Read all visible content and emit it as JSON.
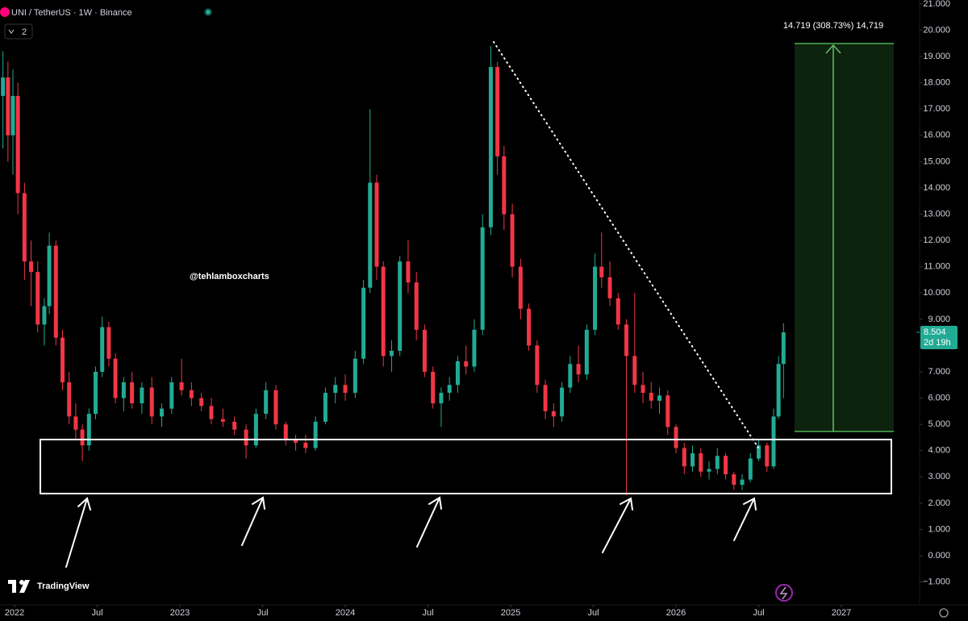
{
  "chart_data": {
    "type": "candlestick",
    "title": "UNI / TetherUS · 1W · Binance",
    "indicator_count": 2,
    "watermark": "TradingView",
    "annotation": "@tehlamboxcharts",
    "measure_label": "14.719 (308.73%) 14,719",
    "last_price": 8.504,
    "countdown": "2d 19h",
    "up_color": "#22ab94",
    "down_color": "#f23645",
    "xlim": [
      2021.912,
      2027.473
    ],
    "ylim": [
      -1.87,
      21.15
    ],
    "xticks": [
      {
        "value": 2022,
        "label": "2022"
      },
      {
        "value": 2022.5,
        "label": "Jul"
      },
      {
        "value": 2023,
        "label": "2023"
      },
      {
        "value": 2023.5,
        "label": "Jul"
      },
      {
        "value": 2024,
        "label": "2024"
      },
      {
        "value": 2024.5,
        "label": "Jul"
      },
      {
        "value": 2025,
        "label": "2025"
      },
      {
        "value": 2025.5,
        "label": "Jul"
      },
      {
        "value": 2026,
        "label": "2026"
      },
      {
        "value": 2026.5,
        "label": "Jul"
      },
      {
        "value": 2027,
        "label": "2027"
      }
    ],
    "yticks": [
      {
        "value": 21,
        "label": "21.000"
      },
      {
        "value": 20,
        "label": "20.000"
      },
      {
        "value": 19,
        "label": "19.000"
      },
      {
        "value": 18,
        "label": "18.000"
      },
      {
        "value": 17,
        "label": "17.000"
      },
      {
        "value": 16,
        "label": "16.000"
      },
      {
        "value": 15,
        "label": "15.000"
      },
      {
        "value": 14,
        "label": "14.000"
      },
      {
        "value": 13,
        "label": "13.000"
      },
      {
        "value": 12,
        "label": "12.000"
      },
      {
        "value": 11,
        "label": "11.000"
      },
      {
        "value": 10,
        "label": "10.000"
      },
      {
        "value": 9,
        "label": "9.000"
      },
      {
        "value": 8,
        "label": "8.000"
      },
      {
        "value": 7,
        "label": "7.000"
      },
      {
        "value": 6,
        "label": "6.000"
      },
      {
        "value": 5,
        "label": "5.000"
      },
      {
        "value": 4,
        "label": "4.000"
      },
      {
        "value": 3,
        "label": "3.000"
      },
      {
        "value": 2,
        "label": "2.000"
      },
      {
        "value": 1,
        "label": "1.000"
      },
      {
        "value": 0,
        "label": "0.000"
      },
      {
        "value": -1,
        "label": "−1.000"
      }
    ],
    "candles": {
      "x": [
        2021.93,
        2021.96,
        2021.99,
        2022.02,
        2022.06,
        2022.1,
        2022.14,
        2022.18,
        2022.21,
        2022.25,
        2022.29,
        2022.33,
        2022.37,
        2022.41,
        2022.45,
        2022.49,
        2022.53,
        2022.57,
        2022.61,
        2022.66,
        2022.71,
        2022.77,
        2022.83,
        2022.89,
        2022.95,
        2023.01,
        2023.07,
        2023.13,
        2023.19,
        2023.26,
        2023.33,
        2023.4,
        2023.46,
        2023.52,
        2023.58,
        2023.64,
        2023.7,
        2023.76,
        2023.82,
        2023.88,
        2023.94,
        2024.0,
        2024.06,
        2024.11,
        2024.15,
        2024.19,
        2024.23,
        2024.28,
        2024.33,
        2024.38,
        2024.43,
        2024.48,
        2024.53,
        2024.58,
        2024.63,
        2024.68,
        2024.73,
        2024.78,
        2024.83,
        2024.88,
        2024.92,
        2024.96,
        2025.01,
        2025.06,
        2025.11,
        2025.16,
        2025.21,
        2025.26,
        2025.31,
        2025.36,
        2025.41,
        2025.46,
        2025.51,
        2025.55,
        2025.6,
        2025.65,
        2025.7,
        2025.75,
        2025.8,
        2025.85,
        2025.9,
        2025.95,
        2026.0,
        2026.05,
        2026.1,
        2026.15,
        2026.2,
        2026.25,
        2026.3,
        2026.35,
        2026.4,
        2026.45,
        2026.5,
        2026.55,
        2026.59,
        2026.62,
        2026.65
      ],
      "open": [
        17.5,
        18.2,
        16.0,
        17.5,
        13.8,
        11.2,
        10.8,
        8.8,
        9.5,
        11.8,
        8.3,
        6.6,
        5.3,
        4.8,
        4.2,
        5.4,
        7.0,
        8.7,
        7.5,
        6.0,
        6.6,
        5.8,
        6.4,
        5.3,
        5.6,
        6.6,
        6.3,
        6.0,
        5.7,
        5.2,
        5.1,
        4.8,
        4.2,
        5.4,
        6.3,
        5.0,
        4.4,
        4.3,
        4.1,
        5.1,
        6.2,
        6.5,
        6.2,
        7.5,
        10.2,
        14.2,
        11.0,
        7.6,
        7.8,
        11.2,
        10.4,
        8.6,
        7.0,
        5.8,
        6.2,
        6.5,
        7.4,
        7.2,
        8.6,
        12.5,
        18.6,
        15.2,
        13.0,
        11.0,
        9.4,
        8.0,
        6.5,
        5.5,
        5.3,
        6.4,
        7.3,
        6.9,
        8.6,
        11.0,
        10.6,
        9.8,
        8.8,
        7.6,
        6.5,
        6.2,
        5.9,
        6.1,
        4.9,
        4.1,
        3.4,
        3.9,
        3.2,
        3.3,
        3.8,
        3.1,
        2.7,
        2.9,
        3.7,
        4.2,
        3.4,
        5.3,
        7.3
      ],
      "high": [
        19.2,
        18.8,
        18.5,
        18.0,
        14.2,
        12.0,
        11.2,
        9.8,
        12.3,
        12.0,
        8.6,
        7.0,
        5.8,
        5.0,
        5.6,
        7.2,
        9.1,
        8.9,
        7.7,
        6.8,
        7.0,
        6.6,
        6.8,
        5.8,
        6.8,
        7.5,
        6.6,
        6.2,
        6.0,
        5.6,
        5.3,
        5.0,
        5.6,
        6.6,
        6.5,
        5.1,
        4.6,
        4.6,
        5.3,
        6.4,
        6.8,
        6.9,
        7.8,
        10.5,
        17.0,
        14.5,
        11.2,
        8.2,
        11.4,
        12.0,
        10.8,
        8.8,
        7.2,
        6.4,
        6.8,
        7.6,
        8.0,
        9.0,
        13.0,
        19.4,
        18.8,
        15.6,
        13.4,
        11.3,
        9.6,
        8.2,
        6.7,
        5.8,
        6.6,
        7.6,
        8.0,
        8.8,
        11.5,
        12.3,
        11.2,
        10.0,
        9.0,
        10.0,
        7.0,
        6.6,
        6.4,
        6.3,
        5.0,
        4.3,
        4.2,
        4.1,
        3.6,
        4.1,
        3.9,
        3.2,
        3.1,
        3.9,
        4.4,
        4.3,
        5.6,
        7.6,
        8.85
      ],
      "low": [
        15.5,
        15.0,
        14.5,
        13.0,
        10.5,
        9.5,
        8.5,
        8.0,
        9.2,
        8.0,
        6.3,
        5.0,
        4.4,
        3.6,
        4.0,
        5.2,
        6.8,
        7.2,
        5.8,
        5.5,
        5.6,
        5.4,
        5.0,
        4.9,
        5.4,
        6.1,
        5.7,
        5.5,
        5.0,
        4.9,
        4.6,
        3.7,
        4.1,
        5.2,
        4.8,
        4.2,
        4.0,
        3.9,
        4.0,
        5.0,
        5.8,
        5.9,
        6.0,
        7.3,
        10.0,
        10.5,
        7.2,
        7.0,
        7.6,
        10.0,
        8.2,
        6.8,
        5.6,
        4.9,
        5.9,
        6.2,
        6.9,
        7.0,
        8.4,
        12.2,
        14.5,
        12.4,
        10.6,
        9.0,
        7.8,
        6.2,
        5.2,
        4.9,
        5.1,
        6.2,
        6.6,
        6.7,
        8.4,
        10.2,
        9.5,
        8.6,
        2.3,
        6.2,
        5.8,
        5.6,
        5.4,
        4.6,
        3.9,
        3.1,
        3.2,
        3.0,
        2.9,
        3.1,
        2.9,
        2.5,
        2.5,
        2.8,
        3.6,
        3.2,
        3.3,
        5.2,
        6.0
      ],
      "close": [
        18.2,
        16.0,
        17.5,
        13.8,
        11.2,
        10.8,
        8.8,
        9.5,
        11.8,
        8.3,
        6.6,
        5.3,
        4.8,
        4.2,
        5.4,
        7.0,
        8.7,
        7.5,
        6.0,
        6.6,
        5.8,
        6.4,
        5.3,
        5.6,
        6.6,
        6.3,
        6.0,
        5.7,
        5.2,
        5.1,
        4.8,
        4.2,
        5.4,
        6.3,
        5.0,
        4.4,
        4.3,
        4.1,
        5.1,
        6.2,
        6.5,
        6.2,
        7.5,
        10.2,
        14.2,
        11.0,
        7.6,
        7.8,
        11.2,
        10.4,
        8.6,
        7.0,
        5.8,
        6.2,
        6.5,
        7.4,
        7.2,
        8.6,
        12.5,
        18.6,
        15.2,
        13.0,
        11.0,
        9.4,
        8.0,
        6.5,
        5.5,
        5.3,
        6.4,
        7.3,
        6.9,
        8.6,
        11.0,
        10.6,
        9.8,
        8.8,
        7.6,
        6.5,
        6.2,
        5.9,
        6.1,
        4.9,
        4.1,
        3.4,
        3.9,
        3.2,
        3.3,
        3.8,
        3.1,
        2.7,
        2.9,
        3.7,
        4.2,
        3.4,
        5.3,
        7.3,
        8.5
      ]
    }
  }
}
